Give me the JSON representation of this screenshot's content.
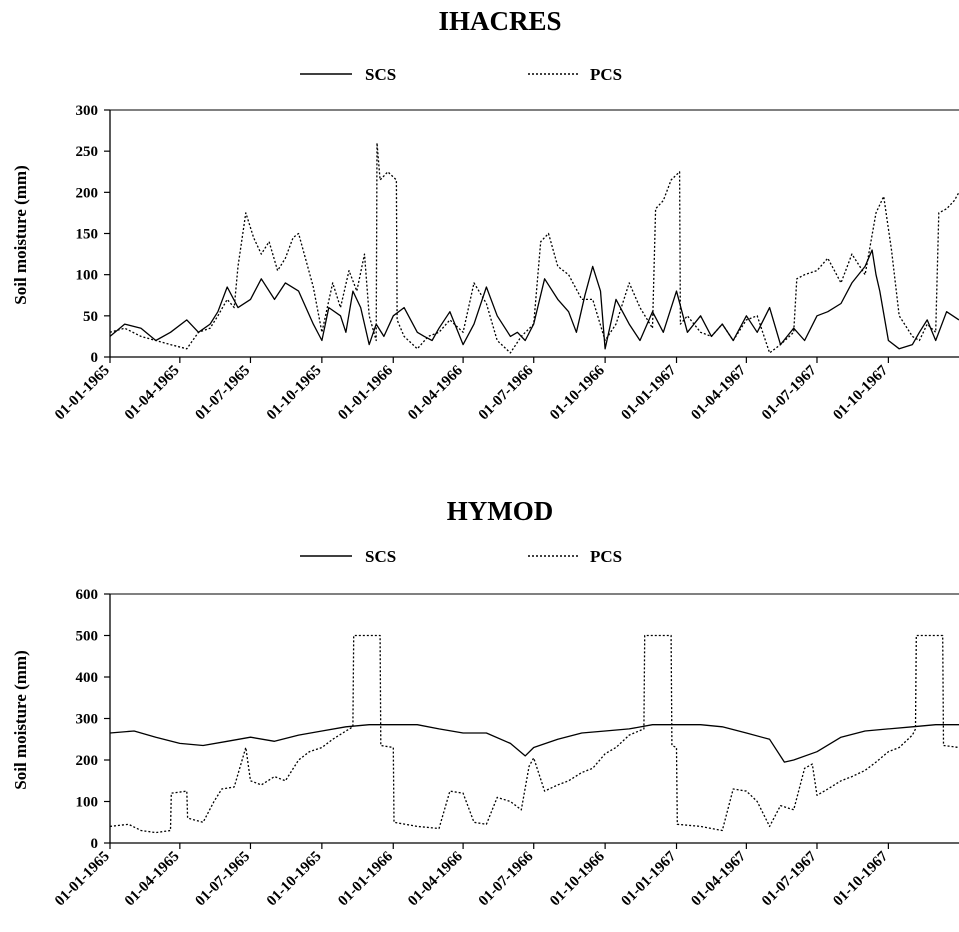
{
  "chart_data": [
    {
      "type": "line",
      "title": "IHACRES",
      "ylabel": "Soil moisture (mm)",
      "xlabel": "",
      "ylim": [
        0,
        300
      ],
      "yticks": [
        0,
        50,
        100,
        150,
        200,
        250,
        300
      ],
      "xlim": [
        "1965-01-01",
        "1967-12-31"
      ],
      "xtick_labels": [
        "01-01-1965",
        "01-04-1965",
        "01-07-1965",
        "01-10-1965",
        "01-01-1966",
        "01-04-1966",
        "01-07-1966",
        "01-10-1966",
        "01-01-1967",
        "01-04-1967",
        "01-07-1967",
        "01-10-1967"
      ],
      "xtick_dates": [
        "1965-01-01",
        "1965-04-01",
        "1965-07-01",
        "1965-10-01",
        "1966-01-01",
        "1966-04-01",
        "1966-07-01",
        "1966-10-01",
        "1967-01-01",
        "1967-04-01",
        "1967-07-01",
        "1967-10-01"
      ],
      "legend_position": "top-center",
      "series": [
        {
          "name": "SCS",
          "style": "solid",
          "x": [
            "1965-01-01",
            "1965-01-20",
            "1965-02-10",
            "1965-03-01",
            "1965-03-20",
            "1965-04-10",
            "1965-04-25",
            "1965-05-10",
            "1965-05-20",
            "1965-06-01",
            "1965-06-15",
            "1965-07-01",
            "1965-07-15",
            "1965-08-01",
            "1965-08-15",
            "1965-09-01",
            "1965-09-20",
            "1965-10-01",
            "1965-10-10",
            "1965-10-25",
            "1965-11-01",
            "1965-11-10",
            "1965-11-20",
            "1965-12-01",
            "1965-12-10",
            "1965-12-20",
            "1966-01-01",
            "1966-01-15",
            "1966-02-01",
            "1966-02-10",
            "1966-02-20",
            "1966-03-01",
            "1966-03-15",
            "1966-04-01",
            "1966-04-15",
            "1966-05-01",
            "1966-05-15",
            "1966-06-01",
            "1966-06-10",
            "1966-06-20",
            "1966-07-01",
            "1966-07-15",
            "1966-08-01",
            "1966-08-15",
            "1966-08-25",
            "1966-09-05",
            "1966-09-15",
            "1966-09-25",
            "1966-10-01",
            "1966-10-15",
            "1966-11-01",
            "1966-11-15",
            "1966-12-01",
            "1966-12-15",
            "1967-01-01",
            "1967-01-15",
            "1967-02-01",
            "1967-02-15",
            "1967-03-01",
            "1967-03-15",
            "1967-04-01",
            "1967-04-15",
            "1967-05-01",
            "1967-05-15",
            "1967-06-01",
            "1967-06-15",
            "1967-07-01",
            "1967-07-15",
            "1967-08-01",
            "1967-08-15",
            "1967-09-01",
            "1967-09-10",
            "1967-09-15",
            "1967-09-20",
            "1967-10-01",
            "1967-10-15",
            "1967-11-01",
            "1967-11-10",
            "1967-11-20",
            "1967-12-01",
            "1967-12-15",
            "1967-12-31"
          ],
          "values": [
            25,
            40,
            35,
            20,
            30,
            45,
            30,
            40,
            55,
            85,
            60,
            70,
            95,
            70,
            90,
            80,
            40,
            20,
            60,
            50,
            30,
            80,
            60,
            15,
            40,
            25,
            50,
            60,
            30,
            25,
            20,
            35,
            55,
            15,
            40,
            85,
            50,
            25,
            30,
            20,
            40,
            95,
            70,
            55,
            30,
            75,
            110,
            80,
            10,
            70,
            40,
            20,
            55,
            30,
            80,
            30,
            50,
            25,
            40,
            20,
            50,
            30,
            60,
            15,
            35,
            20,
            50,
            55,
            65,
            90,
            110,
            130,
            100,
            80,
            20,
            10,
            15,
            30,
            45,
            20,
            55,
            45
          ]
        },
        {
          "name": "PCS",
          "style": "dotted",
          "x": [
            "1965-01-01",
            "1965-01-20",
            "1965-02-10",
            "1965-03-01",
            "1965-03-20",
            "1965-04-10",
            "1965-04-25",
            "1965-05-10",
            "1965-05-20",
            "1965-06-01",
            "1965-06-10",
            "1965-06-15",
            "1965-06-25",
            "1965-07-05",
            "1965-07-15",
            "1965-07-25",
            "1965-08-05",
            "1965-08-15",
            "1965-08-25",
            "1965-09-01",
            "1965-09-20",
            "1965-10-01",
            "1965-10-15",
            "1965-10-25",
            "1965-11-05",
            "1965-11-15",
            "1965-11-25",
            "1965-12-01",
            "1965-12-10",
            "1965-12-11",
            "1965-12-15",
            "1965-12-25",
            "1966-01-05",
            "1966-01-06",
            "1966-01-15",
            "1966-02-01",
            "1966-02-15",
            "1966-03-01",
            "1966-03-15",
            "1966-04-01",
            "1966-04-15",
            "1966-05-01",
            "1966-05-15",
            "1966-06-01",
            "1966-06-15",
            "1966-07-01",
            "1966-07-10",
            "1966-07-20",
            "1966-08-01",
            "1966-08-15",
            "1966-09-01",
            "1966-09-15",
            "1966-10-01",
            "1966-10-15",
            "1966-11-01",
            "1966-11-15",
            "1966-12-01",
            "1966-12-05",
            "1966-12-15",
            "1966-12-25",
            "1967-01-05",
            "1967-01-06",
            "1967-01-15",
            "1967-02-01",
            "1967-02-15",
            "1967-03-01",
            "1967-03-15",
            "1967-04-01",
            "1967-04-15",
            "1967-05-01",
            "1967-05-15",
            "1967-06-01",
            "1967-06-05",
            "1967-06-15",
            "1967-07-01",
            "1967-07-15",
            "1967-08-01",
            "1967-08-15",
            "1967-09-01",
            "1967-09-15",
            "1967-09-25",
            "1967-10-05",
            "1967-10-15",
            "1967-11-01",
            "1967-11-10",
            "1967-11-20",
            "1967-12-01",
            "1967-12-05",
            "1967-12-15",
            "1967-12-25",
            "1967-12-31"
          ],
          "values": [
            30,
            35,
            25,
            20,
            15,
            10,
            30,
            35,
            50,
            70,
            60,
            110,
            175,
            145,
            125,
            140,
            105,
            120,
            145,
            150,
            85,
            30,
            90,
            60,
            105,
            80,
            125,
            50,
            20,
            260,
            215,
            225,
            215,
            45,
            25,
            10,
            25,
            30,
            45,
            30,
            90,
            65,
            20,
            5,
            25,
            40,
            140,
            150,
            110,
            100,
            70,
            70,
            20,
            40,
            90,
            60,
            35,
            180,
            190,
            215,
            225,
            40,
            50,
            30,
            25,
            40,
            20,
            45,
            50,
            5,
            15,
            30,
            95,
            100,
            105,
            120,
            90,
            125,
            100,
            175,
            195,
            130,
            50,
            25,
            20,
            40,
            30,
            175,
            180,
            190,
            200
          ]
        }
      ]
    },
    {
      "type": "line",
      "title": "HYMOD",
      "ylabel": "Soil moisture (mm)",
      "xlabel": "",
      "ylim": [
        0,
        600
      ],
      "yticks": [
        0,
        100,
        200,
        300,
        400,
        500,
        600
      ],
      "xlim": [
        "1965-01-01",
        "1967-12-31"
      ],
      "xtick_labels": [
        "01-01-1965",
        "01-04-1965",
        "01-07-1965",
        "01-10-1965",
        "01-01-1966",
        "01-04-1966",
        "01-07-1966",
        "01-10-1966",
        "01-01-1967",
        "01-04-1967",
        "01-07-1967",
        "01-10-1967"
      ],
      "xtick_dates": [
        "1965-01-01",
        "1965-04-01",
        "1965-07-01",
        "1965-10-01",
        "1966-01-01",
        "1966-04-01",
        "1966-07-01",
        "1966-10-01",
        "1967-01-01",
        "1967-04-01",
        "1967-07-01",
        "1967-10-01"
      ],
      "legend_position": "top-center",
      "series": [
        {
          "name": "SCS",
          "style": "solid",
          "x": [
            "1965-01-01",
            "1965-02-01",
            "1965-03-01",
            "1965-04-01",
            "1965-05-01",
            "1965-06-01",
            "1965-07-01",
            "1965-08-01",
            "1965-09-01",
            "1965-10-01",
            "1965-11-01",
            "1965-12-01",
            "1966-01-01",
            "1966-02-01",
            "1966-03-01",
            "1966-04-01",
            "1966-05-01",
            "1966-06-01",
            "1966-06-20",
            "1966-07-01",
            "1966-08-01",
            "1966-09-01",
            "1966-10-01",
            "1966-11-01",
            "1966-12-01",
            "1967-01-01",
            "1967-02-01",
            "1967-03-01",
            "1967-04-01",
            "1967-05-01",
            "1967-05-20",
            "1967-06-01",
            "1967-07-01",
            "1967-08-01",
            "1967-09-01",
            "1967-10-01",
            "1967-11-01",
            "1967-12-01",
            "1967-12-31"
          ],
          "values": [
            265,
            270,
            255,
            240,
            235,
            245,
            255,
            245,
            260,
            270,
            280,
            285,
            285,
            285,
            275,
            265,
            265,
            240,
            210,
            230,
            250,
            265,
            270,
            275,
            285,
            285,
            285,
            280,
            265,
            250,
            195,
            200,
            220,
            255,
            270,
            275,
            280,
            285,
            285
          ]
        },
        {
          "name": "PCS",
          "style": "dotted",
          "x": [
            "1965-01-01",
            "1965-01-25",
            "1965-02-10",
            "1965-03-01",
            "1965-03-20",
            "1965-03-21",
            "1965-04-10",
            "1965-04-11",
            "1965-05-01",
            "1965-05-15",
            "1965-05-25",
            "1965-06-10",
            "1965-06-25",
            "1965-07-01",
            "1965-07-15",
            "1965-08-01",
            "1965-08-15",
            "1965-09-01",
            "1965-09-15",
            "1965-10-01",
            "1965-10-15",
            "1965-11-01",
            "1965-11-10",
            "1965-11-11",
            "1965-12-15",
            "1965-12-16",
            "1966-01-01",
            "1966-01-02",
            "1966-02-01",
            "1966-03-01",
            "1966-03-15",
            "1966-04-01",
            "1966-04-15",
            "1966-05-01",
            "1966-05-15",
            "1966-06-01",
            "1966-06-15",
            "1966-06-25",
            "1966-07-01",
            "1966-07-15",
            "1966-08-01",
            "1966-08-15",
            "1966-09-01",
            "1966-09-15",
            "1966-10-01",
            "1966-10-15",
            "1966-11-01",
            "1966-11-20",
            "1966-11-21",
            "1966-12-25",
            "1966-12-26",
            "1967-01-01",
            "1967-01-02",
            "1967-02-01",
            "1967-03-01",
            "1967-03-15",
            "1967-04-01",
            "1967-04-15",
            "1967-05-01",
            "1967-05-15",
            "1967-06-01",
            "1967-06-15",
            "1967-06-25",
            "1967-07-01",
            "1967-07-15",
            "1967-08-01",
            "1967-08-15",
            "1967-09-01",
            "1967-09-15",
            "1967-10-01",
            "1967-10-15",
            "1967-11-01",
            "1967-11-05",
            "1967-11-06",
            "1967-12-10",
            "1967-12-11",
            "1967-12-31"
          ],
          "values": [
            40,
            45,
            30,
            25,
            30,
            120,
            125,
            60,
            50,
            100,
            130,
            135,
            230,
            150,
            140,
            160,
            150,
            200,
            220,
            230,
            250,
            270,
            280,
            500,
            500,
            235,
            230,
            50,
            40,
            35,
            125,
            120,
            50,
            45,
            110,
            100,
            80,
            185,
            205,
            125,
            140,
            150,
            170,
            180,
            215,
            230,
            260,
            275,
            500,
            500,
            235,
            230,
            45,
            40,
            30,
            130,
            125,
            100,
            40,
            90,
            80,
            180,
            190,
            115,
            130,
            150,
            160,
            175,
            195,
            220,
            230,
            260,
            275,
            500,
            500,
            235,
            230
          ]
        }
      ]
    }
  ]
}
